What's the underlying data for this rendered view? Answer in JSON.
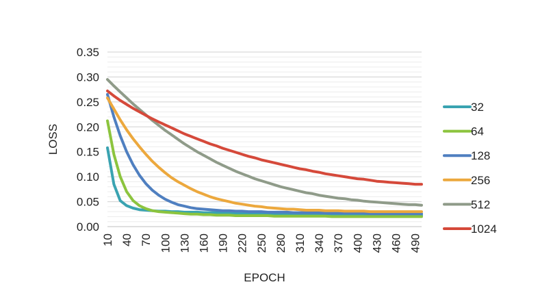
{
  "chart_data": {
    "type": "line",
    "title": "",
    "xlabel": "EPOCH",
    "ylabel": "LOSS",
    "ylim": [
      0,
      0.35
    ],
    "yticks": [
      "0.00",
      "0.05",
      "0.10",
      "0.15",
      "0.20",
      "0.25",
      "0.30",
      "0.35"
    ],
    "x": [
      10,
      20,
      30,
      40,
      50,
      60,
      70,
      80,
      90,
      100,
      110,
      120,
      130,
      140,
      150,
      160,
      170,
      180,
      190,
      200,
      210,
      220,
      230,
      240,
      250,
      260,
      270,
      280,
      290,
      300,
      310,
      320,
      330,
      340,
      350,
      360,
      370,
      380,
      390,
      400,
      410,
      420,
      430,
      440,
      450,
      460,
      470,
      480,
      490,
      500
    ],
    "xtick_labels": [
      "10",
      "40",
      "70",
      "100",
      "130",
      "160",
      "190",
      "220",
      "250",
      "280",
      "310",
      "340",
      "370",
      "400",
      "430",
      "460",
      "490"
    ],
    "grid": true,
    "legend_position": "right",
    "series": [
      {
        "name": "32",
        "color": "#3aa3b1",
        "values": [
          0.158,
          0.085,
          0.052,
          0.042,
          0.037,
          0.034,
          0.033,
          0.032,
          0.031,
          0.031,
          0.03,
          0.03,
          0.029,
          0.029,
          0.029,
          0.028,
          0.028,
          0.028,
          0.028,
          0.027,
          0.027,
          0.027,
          0.027,
          0.027,
          0.026,
          0.026,
          0.026,
          0.026,
          0.026,
          0.025,
          0.025,
          0.025,
          0.025,
          0.025,
          0.025,
          0.024,
          0.024,
          0.024,
          0.024,
          0.024,
          0.024,
          0.024,
          0.023,
          0.023,
          0.023,
          0.023,
          0.023,
          0.023,
          0.023,
          0.023
        ]
      },
      {
        "name": "64",
        "color": "#8cc43e",
        "values": [
          0.212,
          0.145,
          0.1,
          0.07,
          0.052,
          0.042,
          0.036,
          0.032,
          0.03,
          0.029,
          0.028,
          0.027,
          0.026,
          0.025,
          0.025,
          0.024,
          0.024,
          0.023,
          0.023,
          0.023,
          0.022,
          0.022,
          0.022,
          0.022,
          0.022,
          0.022,
          0.021,
          0.021,
          0.021,
          0.021,
          0.021,
          0.021,
          0.021,
          0.021,
          0.021,
          0.02,
          0.02,
          0.02,
          0.02,
          0.02,
          0.02,
          0.02,
          0.02,
          0.02,
          0.02,
          0.02,
          0.02,
          0.02,
          0.02,
          0.02
        ]
      },
      {
        "name": "128",
        "color": "#4f7fc0",
        "values": [
          0.265,
          0.22,
          0.182,
          0.15,
          0.124,
          0.103,
          0.086,
          0.073,
          0.063,
          0.055,
          0.049,
          0.044,
          0.041,
          0.038,
          0.036,
          0.035,
          0.034,
          0.033,
          0.032,
          0.032,
          0.031,
          0.031,
          0.03,
          0.03,
          0.03,
          0.029,
          0.029,
          0.029,
          0.029,
          0.028,
          0.028,
          0.028,
          0.028,
          0.028,
          0.027,
          0.027,
          0.027,
          0.027,
          0.027,
          0.027,
          0.027,
          0.026,
          0.026,
          0.026,
          0.026,
          0.026,
          0.026,
          0.026,
          0.026,
          0.026
        ]
      },
      {
        "name": "256",
        "color": "#eca83d",
        "values": [
          0.258,
          0.236,
          0.214,
          0.194,
          0.176,
          0.16,
          0.145,
          0.131,
          0.119,
          0.108,
          0.098,
          0.09,
          0.083,
          0.076,
          0.07,
          0.065,
          0.06,
          0.056,
          0.053,
          0.05,
          0.047,
          0.045,
          0.043,
          0.041,
          0.04,
          0.038,
          0.037,
          0.036,
          0.035,
          0.035,
          0.034,
          0.033,
          0.033,
          0.033,
          0.032,
          0.032,
          0.032,
          0.031,
          0.031,
          0.031,
          0.031,
          0.03,
          0.03,
          0.03,
          0.03,
          0.03,
          0.03,
          0.03,
          0.03,
          0.03
        ]
      },
      {
        "name": "512",
        "color": "#8f9b89",
        "values": [
          0.295,
          0.282,
          0.27,
          0.258,
          0.246,
          0.235,
          0.224,
          0.213,
          0.203,
          0.193,
          0.184,
          0.175,
          0.166,
          0.158,
          0.15,
          0.143,
          0.136,
          0.129,
          0.123,
          0.117,
          0.111,
          0.106,
          0.101,
          0.096,
          0.092,
          0.088,
          0.084,
          0.08,
          0.077,
          0.074,
          0.071,
          0.068,
          0.066,
          0.063,
          0.061,
          0.059,
          0.057,
          0.056,
          0.054,
          0.053,
          0.051,
          0.05,
          0.049,
          0.048,
          0.047,
          0.046,
          0.045,
          0.044,
          0.044,
          0.043
        ]
      },
      {
        "name": "1024",
        "color": "#d5493a",
        "values": [
          0.272,
          0.262,
          0.253,
          0.245,
          0.237,
          0.23,
          0.223,
          0.216,
          0.21,
          0.204,
          0.198,
          0.192,
          0.186,
          0.181,
          0.176,
          0.171,
          0.166,
          0.162,
          0.157,
          0.153,
          0.149,
          0.145,
          0.141,
          0.138,
          0.134,
          0.131,
          0.128,
          0.125,
          0.122,
          0.119,
          0.116,
          0.114,
          0.111,
          0.109,
          0.106,
          0.104,
          0.102,
          0.1,
          0.098,
          0.096,
          0.095,
          0.093,
          0.091,
          0.09,
          0.089,
          0.088,
          0.087,
          0.086,
          0.085,
          0.085
        ]
      }
    ]
  }
}
